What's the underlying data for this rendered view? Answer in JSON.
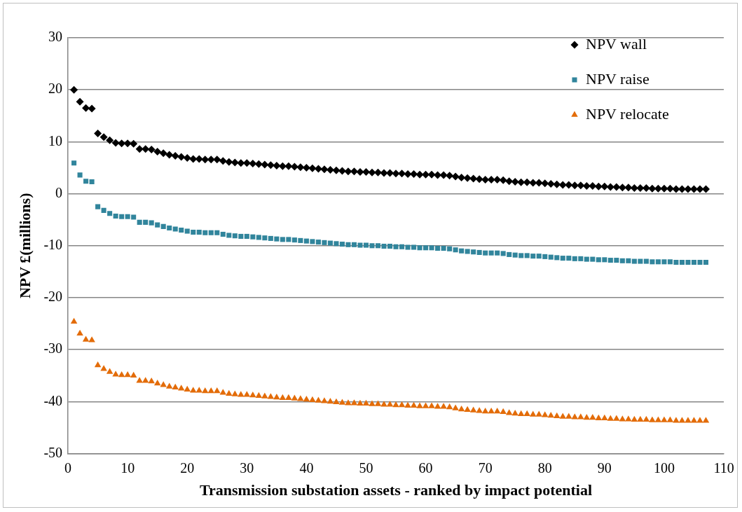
{
  "chart_data": {
    "type": "scatter",
    "xlabel": "Transmission substation assets - ranked by impact potential",
    "ylabel": "NPV £(millions)",
    "x": [
      1,
      2,
      3,
      4,
      5,
      6,
      7,
      8,
      9,
      10,
      11,
      12,
      13,
      14,
      15,
      16,
      17,
      18,
      19,
      20,
      21,
      22,
      23,
      24,
      25,
      26,
      27,
      28,
      29,
      30,
      31,
      32,
      33,
      34,
      35,
      36,
      37,
      38,
      39,
      40,
      41,
      42,
      43,
      44,
      45,
      46,
      47,
      48,
      49,
      50,
      51,
      52,
      53,
      54,
      55,
      56,
      57,
      58,
      59,
      60,
      61,
      62,
      63,
      64,
      65,
      66,
      67,
      68,
      69,
      70,
      71,
      72,
      73,
      74,
      75,
      76,
      77,
      78,
      79,
      80,
      81,
      82,
      83,
      84,
      85,
      86,
      87,
      88,
      89,
      90,
      91,
      92,
      93,
      94,
      95,
      96,
      97,
      98,
      99,
      100,
      101,
      102,
      103,
      104,
      105,
      106,
      107
    ],
    "xlim": [
      0,
      110
    ],
    "xticks": [
      0,
      10,
      20,
      30,
      40,
      50,
      60,
      70,
      80,
      90,
      100,
      110
    ],
    "ylim": [
      -50,
      30
    ],
    "yticks": [
      -50,
      -40,
      -30,
      -20,
      -10,
      0,
      10,
      20,
      30
    ],
    "grid": "y",
    "legend": "top right",
    "series": [
      {
        "name": "NPV wall",
        "color": "#000000",
        "marker": "diamond",
        "values": [
          20,
          17.7,
          16.5,
          16.4,
          11.6,
          10.9,
          10.3,
          9.8,
          9.7,
          9.7,
          9.6,
          8.6,
          8.6,
          8.5,
          8.1,
          7.8,
          7.5,
          7.3,
          7.1,
          6.9,
          6.7,
          6.7,
          6.6,
          6.6,
          6.6,
          6.3,
          6.1,
          6.0,
          5.9,
          5.9,
          5.8,
          5.7,
          5.6,
          5.5,
          5.4,
          5.3,
          5.3,
          5.2,
          5.1,
          5.0,
          4.9,
          4.8,
          4.7,
          4.6,
          4.5,
          4.4,
          4.3,
          4.3,
          4.2,
          4.2,
          4.1,
          4.1,
          4.0,
          4.0,
          3.9,
          3.9,
          3.8,
          3.8,
          3.7,
          3.7,
          3.7,
          3.6,
          3.6,
          3.5,
          3.3,
          3.1,
          3.0,
          2.9,
          2.8,
          2.7,
          2.7,
          2.7,
          2.6,
          2.4,
          2.3,
          2.2,
          2.2,
          2.1,
          2.1,
          2.0,
          1.9,
          1.8,
          1.7,
          1.7,
          1.6,
          1.6,
          1.5,
          1.5,
          1.4,
          1.4,
          1.3,
          1.3,
          1.2,
          1.2,
          1.1,
          1.1,
          1.1,
          1.0,
          1.0,
          1.0,
          1.0,
          0.9,
          0.9,
          0.9,
          0.9,
          0.9,
          0.9
        ]
      },
      {
        "name": "NPV raise",
        "color": "#31859c",
        "marker": "square",
        "values": [
          5.9,
          3.6,
          2.4,
          2.3,
          -2.5,
          -3.2,
          -3.8,
          -4.3,
          -4.4,
          -4.4,
          -4.5,
          -5.5,
          -5.5,
          -5.6,
          -6.0,
          -6.3,
          -6.6,
          -6.8,
          -7.0,
          -7.2,
          -7.4,
          -7.4,
          -7.5,
          -7.5,
          -7.5,
          -7.8,
          -8.0,
          -8.1,
          -8.2,
          -8.2,
          -8.3,
          -8.4,
          -8.5,
          -8.6,
          -8.7,
          -8.8,
          -8.8,
          -8.9,
          -9.0,
          -9.1,
          -9.2,
          -9.3,
          -9.4,
          -9.5,
          -9.6,
          -9.7,
          -9.8,
          -9.8,
          -9.9,
          -9.9,
          -10.0,
          -10.0,
          -10.1,
          -10.1,
          -10.2,
          -10.2,
          -10.3,
          -10.3,
          -10.4,
          -10.4,
          -10.4,
          -10.5,
          -10.5,
          -10.6,
          -10.8,
          -11.0,
          -11.1,
          -11.2,
          -11.3,
          -11.4,
          -11.4,
          -11.4,
          -11.5,
          -11.7,
          -11.8,
          -11.9,
          -11.9,
          -12.0,
          -12.0,
          -12.1,
          -12.2,
          -12.3,
          -12.4,
          -12.4,
          -12.5,
          -12.5,
          -12.6,
          -12.6,
          -12.7,
          -12.7,
          -12.8,
          -12.8,
          -12.9,
          -12.9,
          -13.0,
          -13.0,
          -13.0,
          -13.1,
          -13.1,
          -13.1,
          -13.1,
          -13.2,
          -13.2,
          -13.2,
          -13.2,
          -13.2,
          -13.2
        ]
      },
      {
        "name": "NPV relocate",
        "color": "#e36c09",
        "marker": "triangle",
        "values": [
          -24.6,
          -26.9,
          -28.1,
          -28.2,
          -33.0,
          -33.7,
          -34.3,
          -34.8,
          -34.9,
          -34.9,
          -35.0,
          -36.0,
          -36.0,
          -36.1,
          -36.5,
          -36.8,
          -37.1,
          -37.3,
          -37.5,
          -37.7,
          -37.9,
          -37.9,
          -38.0,
          -38.0,
          -38.0,
          -38.3,
          -38.5,
          -38.6,
          -38.7,
          -38.7,
          -38.8,
          -38.9,
          -39.0,
          -39.1,
          -39.2,
          -39.3,
          -39.3,
          -39.4,
          -39.5,
          -39.6,
          -39.7,
          -39.8,
          -39.9,
          -40.0,
          -40.1,
          -40.2,
          -40.3,
          -40.3,
          -40.4,
          -40.4,
          -40.5,
          -40.5,
          -40.6,
          -40.6,
          -40.7,
          -40.7,
          -40.8,
          -40.8,
          -40.9,
          -40.9,
          -40.9,
          -41.0,
          -41.0,
          -41.1,
          -41.3,
          -41.5,
          -41.6,
          -41.7,
          -41.8,
          -41.9,
          -41.9,
          -41.9,
          -42.0,
          -42.2,
          -42.3,
          -42.4,
          -42.4,
          -42.5,
          -42.5,
          -42.6,
          -42.7,
          -42.8,
          -42.9,
          -42.9,
          -43.0,
          -43.0,
          -43.1,
          -43.1,
          -43.2,
          -43.2,
          -43.3,
          -43.3,
          -43.4,
          -43.4,
          -43.5,
          -43.5,
          -43.5,
          -43.6,
          -43.6,
          -43.6,
          -43.6,
          -43.7,
          -43.7,
          -43.7,
          -43.7,
          -43.7,
          -43.7
        ]
      }
    ]
  }
}
